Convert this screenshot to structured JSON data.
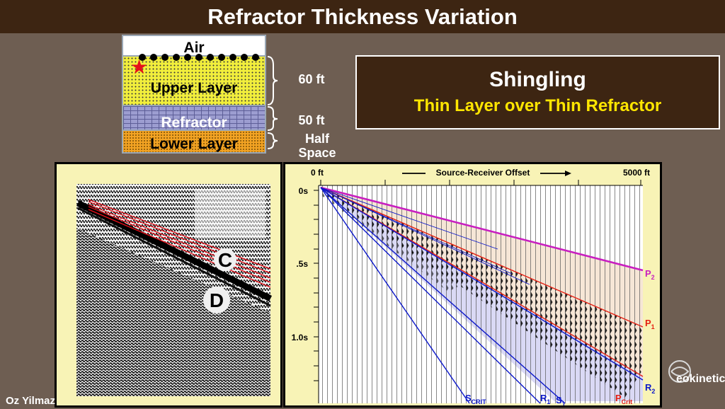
{
  "title": "Refractor Thickness Variation",
  "model": {
    "air": "Air",
    "upper": "Upper Layer",
    "refractor": "Refractor",
    "lower": "Lower Layer",
    "dim1": "60 ft",
    "dim2": "50 ft",
    "dim3": "Half Space"
  },
  "box": {
    "heading": "Shingling",
    "subheading": "Thin Layer over Thin Refractor"
  },
  "left_labels": {
    "c": "C",
    "d": "D"
  },
  "gather": {
    "x_left": "0 ft",
    "x_right": "5000 ft",
    "axis_title": "Source-Receiver Offset",
    "y_ticks": [
      "0s",
      ".5s",
      "1.0s"
    ],
    "events": {
      "p2": {
        "main": "P",
        "sub": "2"
      },
      "p1": {
        "main": "P",
        "sub": "1"
      },
      "r2": {
        "main": "R",
        "sub": "2"
      },
      "scrit": {
        "main": "S",
        "sub": "CRIT"
      },
      "r1": {
        "main": "R",
        "sub": "1"
      },
      "s1": {
        "main": "S",
        "sub": "1"
      },
      "pcrit": {
        "main": "P",
        "sub": "Crit"
      }
    }
  },
  "colors": {
    "pink": "#c81fc0",
    "red": "#e52013",
    "blue": "#0c18c9",
    "title_bg": "#3d2512",
    "yellow_text": "#ffe600"
  },
  "credit": "Oz Yilmaz",
  "logo": "eokinetics"
}
